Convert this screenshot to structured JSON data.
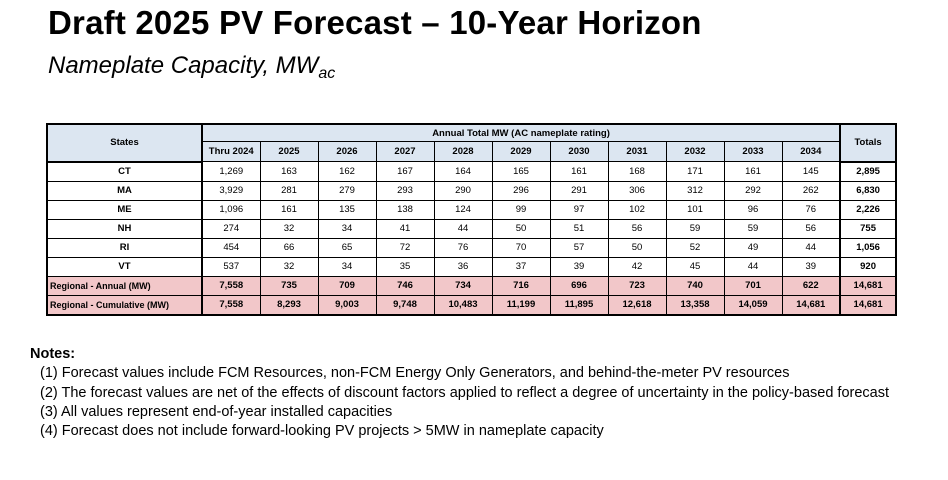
{
  "title": "Draft 2025 PV Forecast – 10-Year Horizon",
  "subtitle": {
    "main": "Nameplate Capacity, MW",
    "sub": "ac"
  },
  "table": {
    "states_header": "States",
    "group_header": "Annual Total MW (AC nameplate rating)",
    "totals_header": "Totals",
    "year_headers": [
      "Thru 2024",
      "2025",
      "2026",
      "2027",
      "2028",
      "2029",
      "2030",
      "2031",
      "2032",
      "2033",
      "2034"
    ],
    "rows": [
      {
        "state": "CT",
        "values": [
          "1,269",
          "163",
          "162",
          "167",
          "164",
          "165",
          "161",
          "168",
          "171",
          "161",
          "145"
        ],
        "total": "2,895"
      },
      {
        "state": "MA",
        "values": [
          "3,929",
          "281",
          "279",
          "293",
          "290",
          "296",
          "291",
          "306",
          "312",
          "292",
          "262"
        ],
        "total": "6,830"
      },
      {
        "state": "ME",
        "values": [
          "1,096",
          "161",
          "135",
          "138",
          "124",
          "99",
          "97",
          "102",
          "101",
          "96",
          "76"
        ],
        "total": "2,226"
      },
      {
        "state": "NH",
        "values": [
          "274",
          "32",
          "34",
          "41",
          "44",
          "50",
          "51",
          "56",
          "59",
          "59",
          "56"
        ],
        "total": "755"
      },
      {
        "state": "RI",
        "values": [
          "454",
          "66",
          "65",
          "72",
          "76",
          "70",
          "57",
          "50",
          "52",
          "49",
          "44"
        ],
        "total": "1,056"
      },
      {
        "state": "VT",
        "values": [
          "537",
          "32",
          "34",
          "35",
          "36",
          "37",
          "39",
          "42",
          "45",
          "44",
          "39"
        ],
        "total": "920"
      }
    ],
    "regional_annual": {
      "label": "Regional - Annual (MW)",
      "values": [
        "7,558",
        "735",
        "709",
        "746",
        "734",
        "716",
        "696",
        "723",
        "740",
        "701",
        "622"
      ],
      "total": "14,681"
    },
    "regional_cumulative": {
      "label": "Regional - Cumulative (MW)",
      "values": [
        "7,558",
        "8,293",
        "9,003",
        "9,748",
        "10,483",
        "11,199",
        "11,895",
        "12,618",
        "13,358",
        "14,059",
        "14,681"
      ],
      "total": "14,681"
    }
  },
  "notes": {
    "title": "Notes:",
    "items": [
      "(1) Forecast values include FCM Resources, non-FCM Energy Only Generators, and behind-the-meter PV resources",
      "(2) The forecast values are net of the effects of discount factors applied to reflect a degree of uncertainty in the policy-based forecast",
      "(3) All values represent end-of-year installed capacities",
      "(4) Forecast does not include forward-looking PV projects > 5MW in nameplate capacity"
    ]
  },
  "colors": {
    "header_bg": "#dce6f1",
    "regional_bg": "#f2c7c9"
  }
}
